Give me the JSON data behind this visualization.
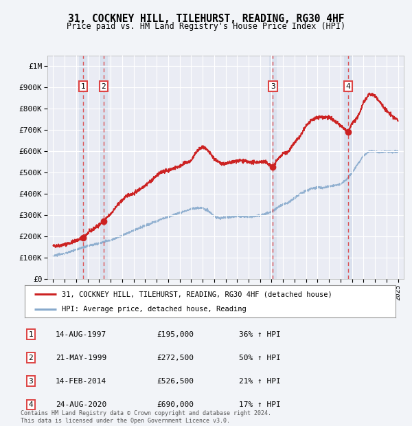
{
  "title": "31, COCKNEY HILL, TILEHURST, READING, RG30 4HF",
  "subtitle": "Price paid vs. HM Land Registry's House Price Index (HPI)",
  "ylim": [
    0,
    1050000
  ],
  "yticks": [
    0,
    100000,
    200000,
    300000,
    400000,
    500000,
    600000,
    700000,
    800000,
    900000,
    1000000
  ],
  "ytick_labels": [
    "£0",
    "£100K",
    "£200K",
    "£300K",
    "£400K",
    "£500K",
    "£600K",
    "£700K",
    "£800K",
    "£900K",
    "£1M"
  ],
  "background_color": "#f2f4f8",
  "plot_bg_color": "#eaecf4",
  "grid_color": "#ffffff",
  "red_line_color": "#cc2222",
  "blue_line_color": "#88aacc",
  "vline_color": "#dd4444",
  "span_color": "#c8d4e8",
  "transactions": [
    {
      "date": 1997.62,
      "price": 195000,
      "label": "1"
    },
    {
      "date": 1999.39,
      "price": 272500,
      "label": "2"
    },
    {
      "date": 2014.12,
      "price": 526500,
      "label": "3"
    },
    {
      "date": 2020.65,
      "price": 690000,
      "label": "4"
    }
  ],
  "vline_dates": [
    1997.62,
    1999.39,
    2014.12,
    2020.65
  ],
  "legend_entries": [
    "31, COCKNEY HILL, TILEHURST, READING, RG30 4HF (detached house)",
    "HPI: Average price, detached house, Reading"
  ],
  "table_rows": [
    {
      "num": "1",
      "date": "14-AUG-1997",
      "price": "£195,000",
      "hpi": "36% ↑ HPI"
    },
    {
      "num": "2",
      "date": "21-MAY-1999",
      "price": "£272,500",
      "hpi": "50% ↑ HPI"
    },
    {
      "num": "3",
      "date": "14-FEB-2014",
      "price": "£526,500",
      "hpi": "21% ↑ HPI"
    },
    {
      "num": "4",
      "date": "24-AUG-2020",
      "price": "£690,000",
      "hpi": "17% ↑ HPI"
    }
  ],
  "footer": "Contains HM Land Registry data © Crown copyright and database right 2024.\nThis data is licensed under the Open Government Licence v3.0.",
  "xlim": [
    1994.5,
    2025.5
  ],
  "xtick_years": [
    1995,
    1996,
    1997,
    1998,
    1999,
    2000,
    2001,
    2002,
    2003,
    2004,
    2005,
    2006,
    2007,
    2008,
    2009,
    2010,
    2011,
    2012,
    2013,
    2014,
    2015,
    2016,
    2017,
    2018,
    2019,
    2020,
    2021,
    2022,
    2023,
    2024,
    2025
  ],
  "red_waypoints_x": [
    1995.0,
    1995.5,
    1996.0,
    1996.5,
    1997.0,
    1997.62,
    1998.0,
    1998.5,
    1999.0,
    1999.39,
    2000.0,
    2000.5,
    2001.0,
    2001.5,
    2002.0,
    2002.5,
    2003.0,
    2003.5,
    2004.0,
    2004.5,
    2005.0,
    2005.5,
    2006.0,
    2006.5,
    2007.0,
    2007.5,
    2008.0,
    2008.5,
    2009.0,
    2009.5,
    2010.0,
    2010.5,
    2011.0,
    2011.5,
    2012.0,
    2012.5,
    2013.0,
    2013.5,
    2014.12,
    2014.5,
    2015.0,
    2015.5,
    2016.0,
    2016.5,
    2017.0,
    2017.5,
    2018.0,
    2018.5,
    2019.0,
    2019.5,
    2020.0,
    2020.65,
    2021.0,
    2021.5,
    2022.0,
    2022.5,
    2023.0,
    2023.5,
    2024.0,
    2024.5,
    2025.0
  ],
  "red_waypoints_y": [
    155000,
    157000,
    162000,
    170000,
    180000,
    195000,
    215000,
    235000,
    255000,
    272500,
    305000,
    340000,
    370000,
    395000,
    400000,
    420000,
    440000,
    460000,
    485000,
    505000,
    510000,
    520000,
    530000,
    545000,
    555000,
    600000,
    620000,
    600000,
    565000,
    545000,
    540000,
    548000,
    555000,
    555000,
    548000,
    548000,
    550000,
    548000,
    526500,
    560000,
    590000,
    600000,
    640000,
    670000,
    720000,
    745000,
    760000,
    760000,
    760000,
    740000,
    720000,
    690000,
    730000,
    760000,
    830000,
    870000,
    860000,
    825000,
    790000,
    765000,
    745000
  ],
  "hpi_waypoints_x": [
    1995,
    1996,
    1997,
    1998,
    1999,
    2000,
    2001,
    2002,
    2003,
    2004,
    2005,
    2006,
    2007,
    2008,
    2008.5,
    2009,
    2009.5,
    2010,
    2011,
    2012,
    2013,
    2014,
    2014.5,
    2015,
    2015.5,
    2016,
    2016.5,
    2017,
    2017.5,
    2018,
    2018.5,
    2019,
    2019.5,
    2020,
    2020.5,
    2021,
    2021.5,
    2022,
    2022.5,
    2023,
    2023.5,
    2024,
    2024.5,
    2025
  ],
  "hpi_waypoints_y": [
    110000,
    120000,
    138000,
    155000,
    168000,
    182000,
    205000,
    228000,
    250000,
    272000,
    292000,
    310000,
    330000,
    335000,
    320000,
    295000,
    285000,
    290000,
    295000,
    293000,
    298000,
    315000,
    335000,
    350000,
    360000,
    380000,
    400000,
    415000,
    425000,
    430000,
    428000,
    435000,
    440000,
    445000,
    465000,
    500000,
    540000,
    580000,
    600000,
    600000,
    595000,
    600000,
    595000,
    600000
  ]
}
